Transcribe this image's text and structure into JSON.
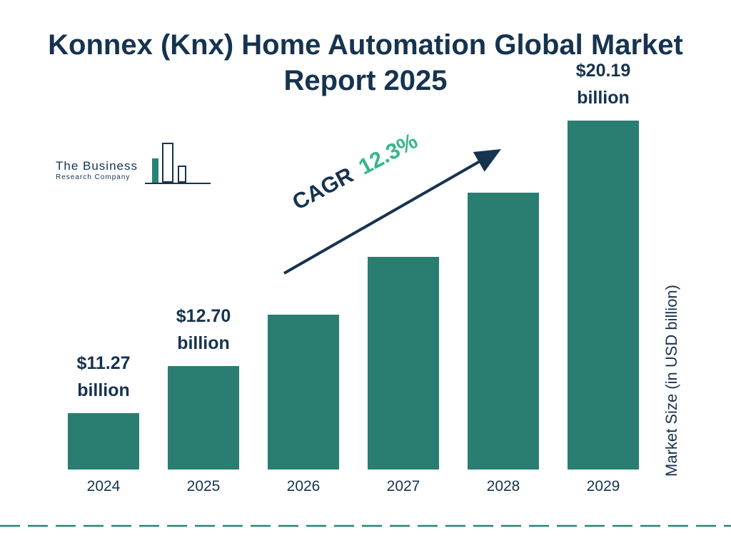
{
  "title": "Konnex (Knx) Home Automation Global Market Report 2025",
  "logo": {
    "line1": "The Business",
    "line2": "Research Company"
  },
  "cagr": {
    "label": "CAGR",
    "value": "12.3%"
  },
  "y_axis_label": "Market Size (in USD billion)",
  "chart_data": {
    "type": "bar",
    "title": "Konnex (Knx) Home Automation Global Market Report 2025",
    "categories": [
      "2024",
      "2025",
      "2026",
      "2027",
      "2028",
      "2029"
    ],
    "values": [
      11.27,
      12.7,
      14.26,
      16.02,
      17.98,
      20.19
    ],
    "value_labels": [
      [
        "$11.27",
        "billion"
      ],
      [
        "$12.70",
        "billion"
      ],
      null,
      null,
      null,
      [
        "$20.19",
        "billion"
      ]
    ],
    "labeled_years": [
      "2024",
      "2025",
      "2029"
    ],
    "cagr_percent": "12.3%",
    "ylabel": "Market Size (in USD billion)",
    "legend": "none",
    "grid": "off",
    "bar_color": "#2a7e71",
    "navy": "#16334f",
    "accent_green": "#35b787"
  }
}
